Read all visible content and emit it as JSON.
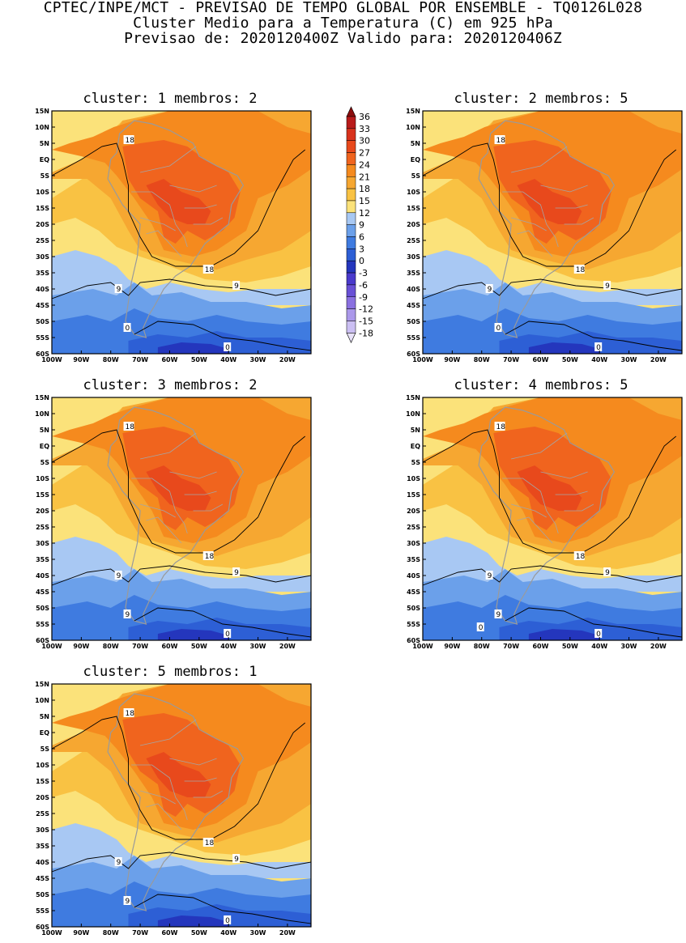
{
  "header": {
    "line1": "CPTEC/INPE/MCT - PREVISAO DE TEMPO GLOBAL POR ENSEMBLE - TQ0126L028",
    "line2": "Cluster Medio para a Temperatura (C) em 925 hPa",
    "line3": "Previsao de: 2020120400Z   Valido para: 2020120406Z"
  },
  "map": {
    "lat_labels": [
      "15N",
      "10N",
      "5N",
      "EQ",
      "5S",
      "10S",
      "15S",
      "20S",
      "25S",
      "30S",
      "35S",
      "40S",
      "45S",
      "50S",
      "55S",
      "60S"
    ],
    "lon_labels": [
      "100W",
      "90W",
      "80W",
      "70W",
      "60W",
      "50W",
      "40W",
      "30W",
      "20W"
    ]
  },
  "colorbar": {
    "labels": [
      "36",
      "33",
      "30",
      "27",
      "24",
      "21",
      "18",
      "15",
      "12",
      "9",
      "6",
      "3",
      "0",
      "-3",
      "-6",
      "-9",
      "-12",
      "-15",
      "-18"
    ],
    "colors": [
      "#8b0d0d",
      "#b81b1b",
      "#d8321c",
      "#e8491c",
      "#f0641e",
      "#f58a1e",
      "#f6a731",
      "#f9c243",
      "#fbe27a",
      "#a8c8f3",
      "#6ba0ea",
      "#3f7be0",
      "#2d5fd5",
      "#2436bd",
      "#4a3acc",
      "#6950d6",
      "#8a70e0",
      "#ab98ea",
      "#cbbff3",
      "#e8e2f9"
    ],
    "arrow_top_color": "#8b0d0d",
    "arrow_bottom_color": "#e8e2f9"
  },
  "panels": [
    {
      "cluster_label": "cluster:",
      "cluster": "1",
      "membros_label": "membros:",
      "membros": "2",
      "contour_labels": [
        "18",
        "18",
        "9",
        "9",
        "0",
        "0"
      ]
    },
    {
      "cluster_label": "cluster:",
      "cluster": "2",
      "membros_label": "membros:",
      "membros": "5",
      "contour_labels": [
        "18",
        "18",
        "9",
        "9",
        "0",
        "0"
      ]
    },
    {
      "cluster_label": "cluster:",
      "cluster": "3",
      "membros_label": "membros:",
      "membros": "2",
      "contour_labels": [
        "18",
        "18",
        "9",
        "9",
        "9",
        "0"
      ]
    },
    {
      "cluster_label": "cluster:",
      "cluster": "4",
      "membros_label": "membros:",
      "membros": "5",
      "contour_labels": [
        "18",
        "18",
        "9",
        "9",
        "9",
        "0",
        "0"
      ]
    },
    {
      "cluster_label": "cluster:",
      "cluster": "5",
      "membros_label": "membros:",
      "membros": "1",
      "contour_labels": [
        "18",
        "18",
        "9",
        "9",
        "9",
        "0"
      ]
    }
  ]
}
